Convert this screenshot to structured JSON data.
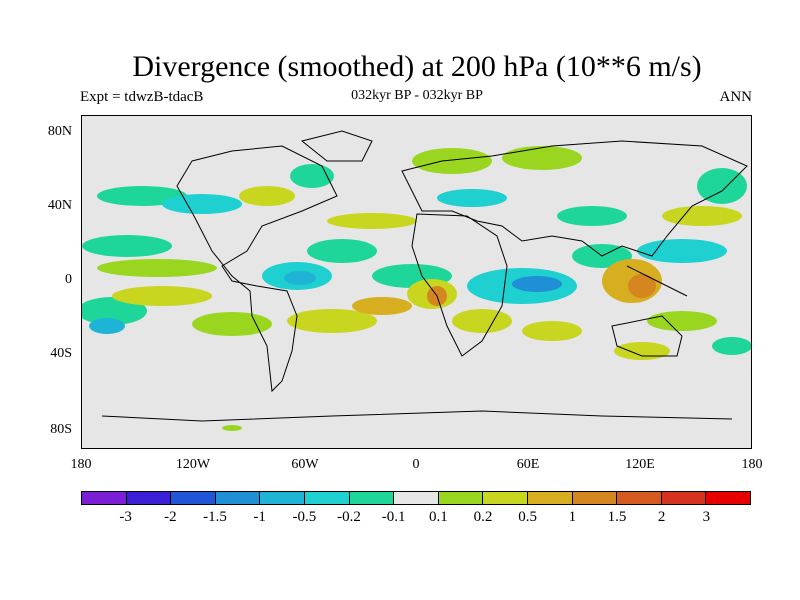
{
  "title": "Divergence (smoothed) at 200 hPa (10**6 m/s)",
  "subtitle_left": "Expt = tdwzB-tdacB",
  "subtitle_center": "032kyr BP - 032kyr BP",
  "subtitle_right": "ANN",
  "y_labels": [
    "80N",
    "40N",
    "0",
    "40S",
    "80S"
  ],
  "x_labels": [
    "180",
    "120W",
    "60W",
    "0",
    "60E",
    "120E",
    "180"
  ],
  "colorbar": {
    "colors": [
      "#7a1fd6",
      "#3a1fd6",
      "#1f55d6",
      "#1f8fd6",
      "#1fb4d6",
      "#1fd0d0",
      "#1fd69a",
      "#e6e6e6",
      "#9ad61f",
      "#c8d61f",
      "#d6ae1f",
      "#d6861f",
      "#d65a1f",
      "#d6321f",
      "#e60000"
    ],
    "labels": [
      "-3",
      "-2",
      "-1.5",
      "-1",
      "-0.5",
      "-0.2",
      "-0.1",
      "0.1",
      "0.2",
      "0.5",
      "1",
      "1.5",
      "2",
      "3"
    ]
  }
}
